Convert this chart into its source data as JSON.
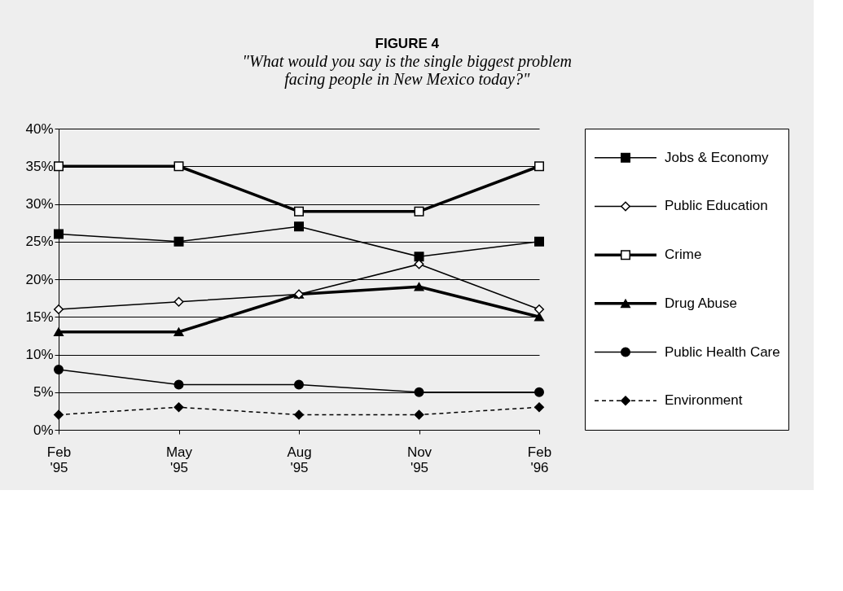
{
  "chart_data": {
    "type": "line",
    "title": "FIGURE 4",
    "subtitle": "\"What would you say is the single biggest problem\nfacing people in New Mexico today?\"",
    "categories": [
      "Feb '95",
      "May '95",
      "Aug '95",
      "Nov '95",
      "Feb '96"
    ],
    "series": [
      {
        "name": "Jobs & Economy",
        "color": "#000000",
        "marker": "square",
        "line_style": "solid",
        "values": [
          26,
          25,
          27,
          23,
          25
        ]
      },
      {
        "name": "Public Education",
        "color": "#000000",
        "marker": "diamond",
        "line_style": "solid",
        "values": [
          16,
          17,
          18,
          22,
          16
        ]
      },
      {
        "name": "Crime",
        "color": "#000000",
        "marker": "square",
        "line_style": "solid",
        "values": [
          35,
          35,
          29,
          29,
          35
        ]
      },
      {
        "name": "Drug Abuse",
        "color": "#000000",
        "marker": "triangle",
        "line_style": "solid",
        "values": [
          13,
          13,
          18,
          19,
          15
        ]
      },
      {
        "name": "Public Health Care",
        "color": "#000000",
        "marker": "circle",
        "line_style": "solid",
        "values": [
          8,
          6,
          6,
          5,
          5
        ]
      },
      {
        "name": "Environment",
        "color": "#000000",
        "marker": "diamond",
        "line_style": "dashed",
        "values": [
          2,
          3,
          2,
          2,
          3
        ]
      }
    ],
    "ylim": [
      0,
      40
    ],
    "yticks": [
      {
        "value": 0,
        "label": "0%"
      },
      {
        "value": 5,
        "label": "5%"
      },
      {
        "value": 10,
        "label": "10%"
      },
      {
        "value": 15,
        "label": "15%"
      },
      {
        "value": 20,
        "label": "20%"
      },
      {
        "value": 25,
        "label": "25%"
      },
      {
        "value": 30,
        "label": "30%"
      },
      {
        "value": 35,
        "label": "35%"
      },
      {
        "value": 40,
        "label": "40%"
      }
    ],
    "grid": "y",
    "legend": "right"
  }
}
